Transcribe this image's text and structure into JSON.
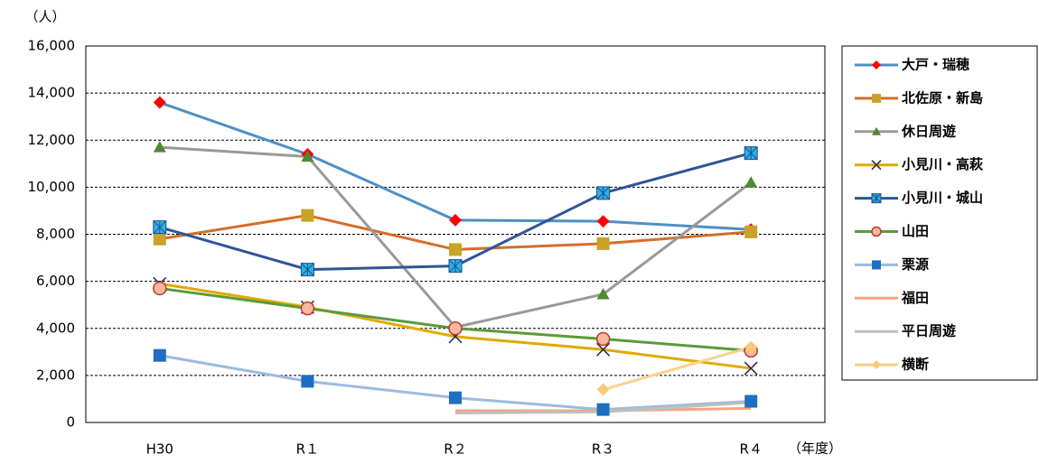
{
  "chart_data": {
    "type": "line",
    "y_unit_label": "（人）",
    "x_unit_label": "（年度）",
    "categories": [
      "H30",
      "R１",
      "R２",
      "R３",
      "R４"
    ],
    "ylim": [
      0,
      16000
    ],
    "yticks": [
      0,
      {
        "value": 2000,
        "label": "2,000"
      },
      {
        "value": 4000,
        "label": "4,000"
      },
      {
        "value": 6000,
        "label": "6,000"
      },
      {
        "value": 8000,
        "label": "8,000"
      },
      {
        "value": 10000,
        "label": "10,000"
      },
      {
        "value": 12000,
        "label": "12,000"
      },
      {
        "value": 14000,
        "label": "14,000"
      },
      {
        "value": 16000,
        "label": "16,000"
      }
    ],
    "grid": true,
    "legend": "right",
    "series": [
      {
        "name": "大戸・瑞穂",
        "color": "#4f8fc6",
        "marker": "diamond",
        "marker_color": "#ff0000",
        "values": [
          13600,
          11400,
          8600,
          8550,
          8200
        ]
      },
      {
        "name": "北佐原・新島",
        "color": "#d46e2a",
        "marker": "square",
        "marker_color": "#c9a227",
        "values": [
          7800,
          8800,
          7350,
          7600,
          8100
        ]
      },
      {
        "name": "休日周遊",
        "color": "#999999",
        "marker": "triangle",
        "marker_color": "#4e8a2e",
        "values": [
          11700,
          11300,
          4050,
          5450,
          10200
        ]
      },
      {
        "name": "小見川・高萩",
        "color": "#e0aa00",
        "marker": "x",
        "marker_color": "#1f2a5c",
        "values": [
          5900,
          4900,
          3650,
          3100,
          2300
        ]
      },
      {
        "name": "小見川・城山",
        "color": "#2e5597",
        "marker": "asterisk-square",
        "marker_color": "#2ab3e8",
        "values": [
          8300,
          6500,
          6650,
          9750,
          11450
        ]
      },
      {
        "name": "山田",
        "color": "#5a9a3a",
        "marker": "circle",
        "marker_color": "#f7b8a0",
        "values": [
          5700,
          4850,
          4000,
          3550,
          3050
        ]
      },
      {
        "name": "栗源",
        "color": "#9dbbe0",
        "marker": "square",
        "marker_color": "#1f6fc0",
        "values": [
          2850,
          1750,
          1050,
          550,
          900
        ]
      },
      {
        "name": "福田",
        "color": "#f4a582",
        "marker": "none",
        "marker_color": "#f4a582",
        "values": [
          null,
          null,
          500,
          500,
          600
        ]
      },
      {
        "name": "平日周遊",
        "color": "#bfbfbf",
        "marker": "none",
        "marker_color": "#bfbfbf",
        "values": [
          null,
          null,
          400,
          450,
          850
        ]
      },
      {
        "name": "横断",
        "color": "#fcd08a",
        "marker": "diamond",
        "marker_color": "#fcc977",
        "values": [
          null,
          null,
          null,
          1400,
          3200
        ]
      }
    ]
  }
}
